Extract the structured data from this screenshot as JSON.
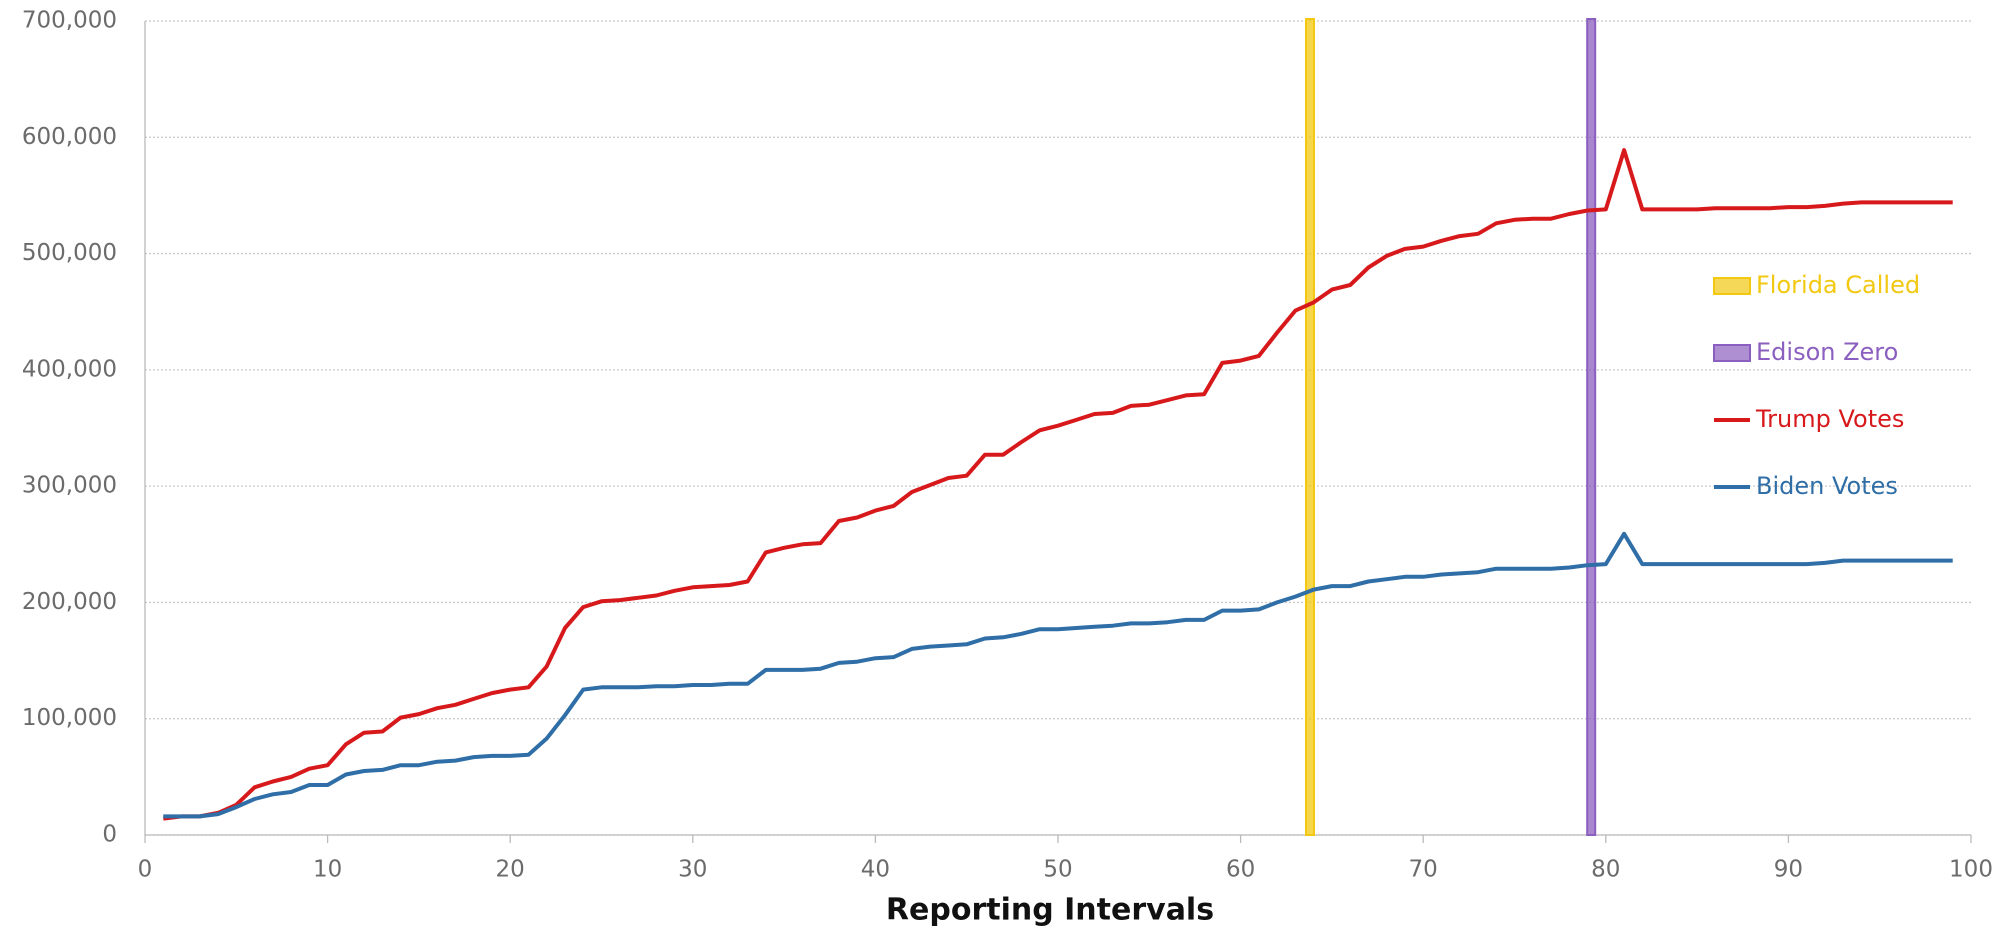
{
  "chart_data": {
    "type": "line",
    "x_label": "Reporting Intervals",
    "x": [
      1,
      2,
      3,
      4,
      5,
      6,
      7,
      8,
      9,
      10,
      11,
      12,
      13,
      14,
      15,
      16,
      17,
      18,
      19,
      20,
      21,
      22,
      23,
      24,
      25,
      26,
      27,
      28,
      29,
      30,
      31,
      32,
      33,
      34,
      35,
      36,
      37,
      38,
      39,
      40,
      41,
      42,
      43,
      44,
      45,
      46,
      47,
      48,
      49,
      50,
      51,
      52,
      53,
      54,
      55,
      56,
      57,
      58,
      59,
      60,
      61,
      62,
      63,
      64,
      65,
      66,
      67,
      68,
      69,
      70,
      71,
      72,
      73,
      74,
      75,
      76,
      77,
      78,
      79,
      80,
      81,
      82,
      83,
      84,
      85,
      86,
      87,
      88,
      89,
      90,
      91,
      92,
      93,
      94,
      95,
      96,
      97,
      98,
      99
    ],
    "series": [
      {
        "name": "Trump Votes",
        "color": "#d7191c",
        "values": [
          14000,
          16000,
          16000,
          19000,
          26000,
          41000,
          46000,
          50000,
          57000,
          60000,
          78000,
          88000,
          89000,
          101000,
          104000,
          109000,
          112000,
          117000,
          122000,
          125000,
          127000,
          145000,
          178000,
          196000,
          201000,
          202000,
          204000,
          206000,
          210000,
          213000,
          214000,
          215000,
          218000,
          243000,
          247000,
          250000,
          251000,
          270000,
          273000,
          279000,
          283000,
          295000,
          301000,
          307000,
          309000,
          327000,
          327000,
          338000,
          348000,
          352000,
          357000,
          362000,
          363000,
          369000,
          370000,
          374000,
          378000,
          379000,
          406000,
          408000,
          412000,
          432000,
          451000,
          458000,
          469000,
          473000,
          488000,
          498000,
          504000,
          506000,
          511000,
          515000,
          517000,
          526000,
          529000,
          530000,
          530000,
          534000,
          537000,
          538000,
          589000,
          538000,
          538000,
          538000,
          538000,
          539000,
          539000,
          539000,
          539000,
          540000,
          540000,
          541000,
          543000,
          544000,
          544000,
          544000,
          544000,
          544000,
          544000
        ]
      },
      {
        "name": "Biden Votes",
        "color": "#2f6ea6",
        "values": [
          16000,
          16000,
          16000,
          18000,
          24000,
          31000,
          35000,
          37000,
          43000,
          43000,
          52000,
          55000,
          56000,
          60000,
          60000,
          63000,
          64000,
          67000,
          68000,
          68000,
          69000,
          83000,
          103000,
          125000,
          127000,
          127000,
          127000,
          128000,
          128000,
          129000,
          129000,
          130000,
          130000,
          142000,
          142000,
          142000,
          143000,
          148000,
          149000,
          152000,
          153000,
          160000,
          162000,
          163000,
          164000,
          169000,
          170000,
          173000,
          177000,
          177000,
          178000,
          179000,
          180000,
          182000,
          182000,
          183000,
          185000,
          185000,
          193000,
          193000,
          194000,
          200000,
          205000,
          211000,
          214000,
          214000,
          218000,
          220000,
          222000,
          222000,
          224000,
          225000,
          226000,
          229000,
          229000,
          229000,
          229000,
          230000,
          232000,
          233000,
          259000,
          233000,
          233000,
          233000,
          233000,
          233000,
          233000,
          233000,
          233000,
          233000,
          233000,
          234000,
          236000,
          236000,
          236000,
          236000,
          236000,
          236000,
          236000
        ]
      }
    ],
    "bands": [
      {
        "name": "Florida Called",
        "x": 63.8,
        "color": "#f2c811"
      },
      {
        "name": "Edison Zero",
        "x": 79.2,
        "color": "#8b5fbf"
      }
    ],
    "xlim": [
      0,
      100
    ],
    "xticks": [
      0,
      10,
      20,
      30,
      40,
      50,
      60,
      70,
      80,
      90,
      100
    ],
    "ylim": [
      0,
      700000
    ],
    "yticks": [
      0,
      {
        "value": 100000,
        "label": "100,000"
      },
      {
        "value": 200000,
        "label": "200,000"
      },
      {
        "value": 300000,
        "label": "300,000"
      },
      {
        "value": 400000,
        "label": "400,000"
      },
      {
        "value": 500000,
        "label": "500,000"
      },
      {
        "value": 600000,
        "label": "600,000"
      },
      {
        "value": 700000,
        "label": "700,000"
      }
    ],
    "grid": true
  }
}
